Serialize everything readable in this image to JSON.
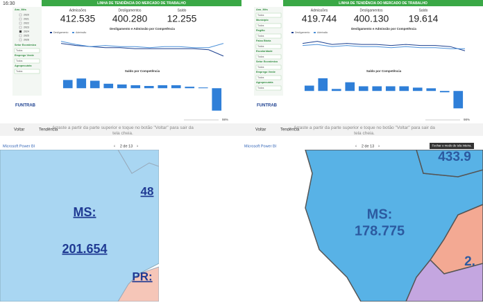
{
  "status_time": "16:30",
  "panels": [
    {
      "title": "LINHA DE TENDÊNCIA DO MERCADO DE TRABALHO",
      "kpis": [
        {
          "label": "Admissões",
          "value": "412.535"
        },
        {
          "label": "Desligamentos",
          "value": "400.280"
        },
        {
          "label": "Saldo",
          "value": "12.255"
        }
      ],
      "filters": [
        {
          "label": "Ano_Mês",
          "options": [
            "2020",
            "2021",
            "2022",
            "2023",
            "2024",
            "2025",
            "2026"
          ]
        },
        {
          "label": "Setor Econômico",
          "value": "Todos"
        },
        {
          "label": "Emprego Verde",
          "value": "Todos"
        },
        {
          "label": "Agropecuária",
          "value": "Todos"
        }
      ],
      "line_chart": {
        "title": "Desligamento e Admissão por Competência",
        "ylim": [
          20,
          45
        ],
        "series": [
          {
            "name": "Desligamento",
            "color": "#1b3f8f",
            "values": [
              38,
              36,
              35,
              34,
              34,
              33,
              33,
              33,
              33,
              33,
              32,
              26
            ]
          },
          {
            "name": "Admissão",
            "color": "#4a90d9",
            "values": [
              40,
              37,
              35,
              36,
              35,
              35,
              34,
              35,
              35,
              34,
              34,
              38
            ]
          }
        ]
      },
      "bar_chart": {
        "title": "Saldo por Competência",
        "ylim": [
          -35,
          16
        ],
        "color": "#2f7fd8",
        "values": [
          11,
          13,
          10,
          6,
          5,
          4,
          3,
          4,
          4,
          2,
          1,
          -30
        ]
      },
      "logo": "FUNTRAB",
      "toolbar": {
        "back": "Voltar",
        "tab": "Tendência",
        "hint": "Arraste a partir da parte superior e toque no botão \"Voltar\" para sair da tela cheia.",
        "brand": "Microsoft Power BI",
        "page": "2 de 13",
        "zoom": "98%"
      }
    },
    {
      "title": "LINHA DE TENDÊNCIA DO MERCADO DE TRABALHO",
      "kpis": [
        {
          "label": "Admissões",
          "value": "419.744"
        },
        {
          "label": "Desligamentos",
          "value": "400.130"
        },
        {
          "label": "Saldo",
          "value": "19.614"
        }
      ],
      "filters": [
        {
          "label": "Ano_Mês",
          "value": "Todos"
        },
        {
          "label": "Município",
          "value": "Todos"
        },
        {
          "label": "Região",
          "value": "Todos"
        },
        {
          "label": "Faixa Etária",
          "value": "Todos"
        },
        {
          "label": "Escolaridade",
          "value": "Todos"
        },
        {
          "label": "Setor Econômico",
          "value": "Todos"
        },
        {
          "label": "Emprego Verde",
          "value": "Todos"
        },
        {
          "label": "Agropecuária",
          "value": "Todos"
        }
      ],
      "line_chart": {
        "title": "Desligamento e Admissão por Competência",
        "ylim": [
          20,
          45
        ],
        "series": [
          {
            "name": "Desligamento",
            "color": "#1b3f8f",
            "values": [
              38,
              40,
              37,
              38,
              37,
              37,
              36,
              37,
              36,
              36,
              35,
              31
            ]
          },
          {
            "name": "Admissão",
            "color": "#4a90d9",
            "values": [
              36,
              37,
              35,
              36,
              35,
              35,
              34,
              35,
              34,
              34,
              33,
              33
            ]
          }
        ]
      },
      "bar_chart": {
        "title": "Saldo por Competência",
        "ylim": [
          -35,
          22
        ],
        "color": "#2f7fd8",
        "values": [
          8,
          19,
          3,
          13,
          7,
          7,
          7,
          7,
          5,
          4,
          -2,
          -26
        ]
      },
      "logo": "FUNTRAB",
      "toolbar": {
        "back": "Voltar",
        "tab": "Tendência",
        "hint": "Arraste a partir da parte superior e toque no botão \"Voltar\" para sair da tela cheia.",
        "brand": "Microsoft Power BI",
        "page": "2 de 13",
        "zoom": "98%"
      }
    }
  ],
  "tooltip": "Fechar o modo de tela inteira.",
  "maps": [
    {
      "labels": [
        "MS:",
        "201.654",
        "PR:",
        "48"
      ]
    },
    {
      "labels": [
        "MS:",
        "178.775",
        "433.9",
        "2."
      ]
    }
  ]
}
